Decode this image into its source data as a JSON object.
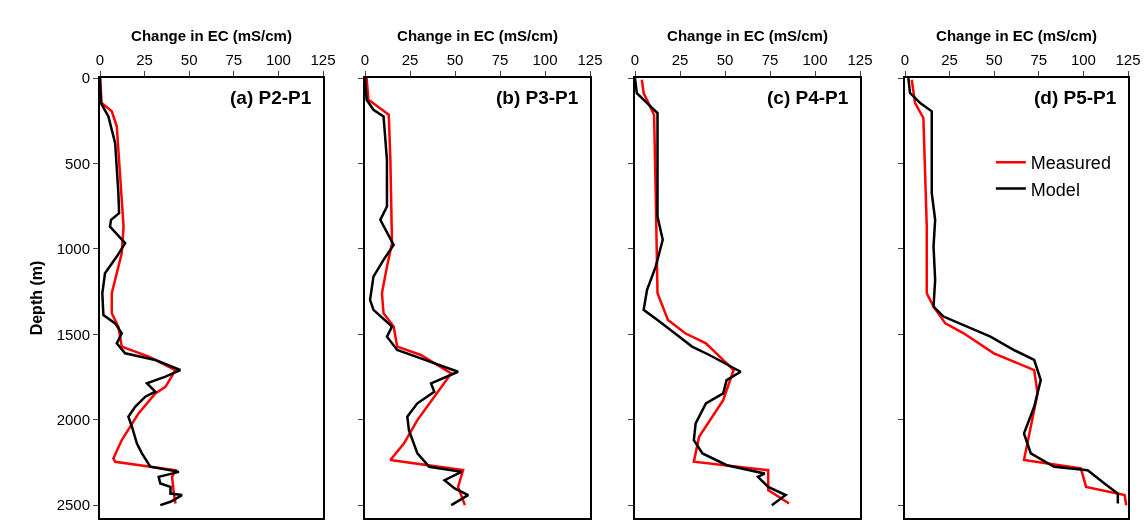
{
  "chart_data": [
    {
      "type": "line",
      "xlabel": "Change in EC (mS/cm)",
      "ylabel": "Depth (m)",
      "annotations": [
        "(a) P2-P1"
      ],
      "orientation": "horizontal",
      "xlim": [
        0,
        125
      ],
      "xticks": [
        0,
        25,
        50,
        75,
        100,
        125
      ],
      "ylim": [
        2575,
        0
      ],
      "yticks": [
        0,
        500,
        1000,
        1500,
        2000,
        2500
      ],
      "grid": false,
      "legend": false,
      "line_style": "solid",
      "marker": "none",
      "series": [
        {
          "color": "#ff0000",
          "values": [
            0,
            0.9,
            6.6,
            9.4,
            11.3,
            13.2,
            12.2,
            6.6,
            6.6,
            10.3,
            12.2,
            27.3,
            42.3,
            36.7,
            31,
            21.6,
            12.2,
            7.5,
            8.5,
            42.3,
            40.4,
            41.4,
            42.3
          ],
          "x": [
            0,
            146,
            195,
            283,
            576,
            869,
            1025,
            1260,
            1377,
            1455,
            1572,
            1631,
            1709,
            1807,
            1846,
            1963,
            2119,
            2227,
            2246,
            2295,
            2334,
            2432,
            2490
          ]
        },
        {
          "color": "#000000",
          "values": [
            0,
            0.5,
            4.7,
            8.5,
            10.3,
            10.7,
            6.2,
            5.6,
            14.1,
            9.4,
            2.8,
            1.3,
            1.9,
            8.5,
            12.2,
            9.4,
            14.1,
            31,
            45,
            36.7,
            26.3,
            31,
            25.4,
            19.7,
            15.9,
            17.9,
            20.7,
            23.5,
            28.2,
            44.2,
            32.9,
            33.8,
            39.5,
            39.5,
            46,
            39.5,
            33.8
          ],
          "x": [
            0,
            146,
            225,
            381,
            674,
            791,
            830,
            869,
            967,
            1045,
            1143,
            1260,
            1387,
            1436,
            1494,
            1553,
            1611,
            1650,
            1709,
            1748,
            1787,
            1836,
            1865,
            1924,
            1982,
            2041,
            2139,
            2197,
            2275,
            2305,
            2334,
            2373,
            2393,
            2432,
            2441,
            2480,
            2500
          ]
        }
      ]
    },
    {
      "type": "line",
      "xlabel": "Change in EC (mS/cm)",
      "annotations": [
        "(b) P3-P1"
      ],
      "orientation": "horizontal",
      "xlim": [
        0,
        125
      ],
      "xticks": [
        0,
        25,
        50,
        75,
        100,
        125
      ],
      "ylim": [
        2575,
        0
      ],
      "yticks": [
        0,
        500,
        1000,
        1500,
        2000,
        2500
      ],
      "tick_labels": "x",
      "grid": false,
      "legend": false,
      "line_style": "solid",
      "marker": "none",
      "series": [
        {
          "color": "#ff0000",
          "values": [
            0.9,
            1.9,
            13.2,
            14.1,
            15,
            12.2,
            9.4,
            10.3,
            15.9,
            17.9,
            31,
            47.9,
            38.5,
            29.1,
            21.6,
            14.1,
            54.5,
            51.7,
            55.5
          ],
          "x": [
            0,
            127,
            215,
            479,
            967,
            1104,
            1260,
            1377,
            1455,
            1572,
            1621,
            1729,
            1865,
            2002,
            2139,
            2236,
            2295,
            2393,
            2500
          ]
        },
        {
          "color": "#000000",
          "values": [
            0,
            0.9,
            4.7,
            10.3,
            12.2,
            12.2,
            8.5,
            15.9,
            10.3,
            4.7,
            2.8,
            4.7,
            15,
            12.2,
            17.9,
            31,
            51.7,
            36.7,
            38.5,
            29.1,
            23.5,
            24.4,
            29.1,
            35.7,
            53.6,
            44.2,
            49.8,
            57.3,
            47.9
          ],
          "x": [
            0,
            127,
            186,
            225,
            479,
            752,
            830,
            977,
            1064,
            1162,
            1299,
            1357,
            1455,
            1514,
            1592,
            1641,
            1719,
            1787,
            1836,
            1904,
            1982,
            2061,
            2197,
            2275,
            2305,
            2354,
            2402,
            2441,
            2500
          ]
        }
      ]
    },
    {
      "type": "line",
      "xlabel": "Change in EC (mS/cm)",
      "annotations": [
        "(c) P4-P1"
      ],
      "orientation": "horizontal",
      "xlim": [
        0,
        125
      ],
      "xticks": [
        0,
        25,
        50,
        75,
        100,
        125
      ],
      "ylim": [
        2575,
        0
      ],
      "yticks": [
        0,
        500,
        1000,
        1500,
        2000,
        2500
      ],
      "tick_labels": "x",
      "grid": false,
      "legend": false,
      "line_style": "solid",
      "marker": "none",
      "series": [
        {
          "color": "#ff0000",
          "values": [
            3.8,
            4.8,
            10.6,
            11.5,
            12.5,
            18.3,
            27.9,
            39.4,
            54.8,
            49,
            35.6,
            32.7,
            74,
            74,
            85.6
          ],
          "x": [
            10,
            88,
            215,
            674,
            1260,
            1416,
            1494,
            1553,
            1709,
            1885,
            2100,
            2246,
            2295,
            2412,
            2490
          ]
        },
        {
          "color": "#000000",
          "values": [
            0,
            1,
            8.6,
            12.5,
            12.5,
            15.4,
            11.5,
            6.7,
            4.8,
            12.5,
            22.1,
            31.7,
            41.3,
            58.7,
            50.9,
            49,
            39.4,
            33.7,
            32.7,
            37.5,
            51,
            72.1,
            68.3,
            74,
            83.7,
            76
          ],
          "x": [
            0,
            88,
            166,
            205,
            811,
            947,
            1104,
            1240,
            1357,
            1416,
            1494,
            1572,
            1621,
            1719,
            1768,
            1846,
            1904,
            2021,
            2119,
            2197,
            2266,
            2315,
            2334,
            2393,
            2441,
            2500
          ]
        }
      ]
    },
    {
      "type": "line",
      "xlabel": "Change in EC (mS/cm)",
      "annotations": [
        "(d) P5-P1"
      ],
      "orientation": "horizontal",
      "xlim": [
        0,
        125
      ],
      "xticks": [
        0,
        25,
        50,
        75,
        100,
        125
      ],
      "ylim": [
        2575,
        0
      ],
      "yticks": [
        0,
        500,
        1000,
        1500,
        2000,
        2500
      ],
      "tick_labels": "x",
      "grid": false,
      "legend": "top right",
      "line_style": "solid",
      "marker": "none",
      "series": [
        {
          "name": "Measured",
          "color": "#ff0000",
          "values": [
            3.8,
            5.6,
            10.3,
            12.2,
            12.2,
            16,
            22.6,
            32.9,
            49.8,
            72.4,
            74.3,
            66.7,
            98.6,
            101.5,
            123.1,
            124
          ],
          "x": [
            10,
            146,
            234,
            869,
            1260,
            1338,
            1436,
            1494,
            1611,
            1709,
            1846,
            2236,
            2285,
            2393,
            2441,
            2500
          ]
        },
        {
          "name": "Model",
          "color": "#000000",
          "values": [
            1.9,
            2.8,
            8.5,
            15,
            15,
            16.9,
            16,
            16.9,
            16,
            21.6,
            34.8,
            47.9,
            61.1,
            72.4,
            76.1,
            72.4,
            66.7,
            70.5,
            83.6,
            102.4,
            111.8,
            119.3,
            119.3
          ],
          "x": [
            0,
            88,
            146,
            195,
            674,
            830,
            986,
            1182,
            1338,
            1396,
            1455,
            1514,
            1592,
            1650,
            1768,
            1924,
            2080,
            2197,
            2275,
            2295,
            2373,
            2432,
            2490
          ]
        }
      ]
    }
  ]
}
